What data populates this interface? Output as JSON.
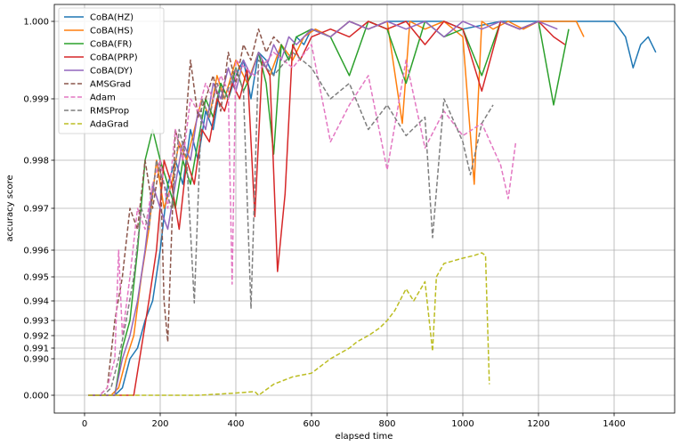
{
  "chart_data": {
    "type": "line",
    "title": "",
    "xlabel": "elapsed time",
    "ylabel": "accuracy score",
    "xlim": [
      -80,
      1560
    ],
    "x_ticks": [
      0,
      200,
      400,
      600,
      800,
      1000,
      1200,
      1400
    ],
    "y_ticks": [
      "0.000",
      "0.990",
      "0.991",
      "0.992",
      "0.993",
      "0.994",
      "0.995",
      "0.996",
      "0.997",
      "0.998",
      "0.999",
      "1.000"
    ],
    "y_scale": "nonlinear (warped toward 1.000)",
    "grid": true,
    "legend_position": "upper-left",
    "series": [
      {
        "name": "CoBA(HZ)",
        "color": "#1f77b4",
        "dash": "solid",
        "x": [
          10,
          60,
          80,
          100,
          120,
          140,
          160,
          180,
          200,
          220,
          240,
          260,
          280,
          300,
          320,
          340,
          360,
          380,
          400,
          420,
          440,
          460,
          480,
          500,
          520,
          540,
          560,
          580,
          600,
          650,
          700,
          750,
          800,
          850,
          900,
          950,
          1000,
          1100,
          1200,
          1300,
          1350,
          1400,
          1430,
          1450,
          1470,
          1490,
          1510
        ],
        "y": [
          0.0,
          0.0,
          0.0,
          0.2,
          0.99,
          0.991,
          0.993,
          0.994,
          0.996,
          0.9975,
          0.998,
          0.9975,
          0.9985,
          0.998,
          0.9988,
          0.9985,
          0.9992,
          0.999,
          0.9993,
          0.9995,
          0.999,
          0.9996,
          0.9995,
          0.9993,
          0.9997,
          0.9995,
          0.9998,
          0.9997,
          0.9999,
          0.9998,
          1.0,
          0.9999,
          1.0,
          1.0,
          1.0,
          1.0,
          0.9999,
          1.0,
          1.0,
          1.0,
          1.0,
          1.0,
          0.9998,
          0.9994,
          0.9997,
          0.9998,
          0.9996
        ]
      },
      {
        "name": "CoBA(HS)",
        "color": "#ff7f0e",
        "dash": "solid",
        "x": [
          10,
          50,
          70,
          90,
          110,
          130,
          150,
          170,
          190,
          210,
          230,
          250,
          270,
          290,
          310,
          330,
          350,
          370,
          400,
          430,
          460,
          490,
          520,
          550,
          580,
          610,
          650,
          700,
          750,
          800,
          840,
          860,
          900,
          950,
          1000,
          1030,
          1050,
          1080,
          1120,
          1160,
          1200,
          1250,
          1300,
          1320
        ],
        "y": [
          0.0,
          0.0,
          0.0,
          0.2,
          0.99,
          0.992,
          0.995,
          0.9965,
          0.998,
          0.997,
          0.9975,
          0.9983,
          0.998,
          0.9985,
          0.999,
          0.9987,
          0.9993,
          0.999,
          0.9995,
          0.9992,
          0.9996,
          0.9993,
          0.9997,
          0.9995,
          0.9998,
          0.9999,
          0.9998,
          1.0,
          0.9999,
          1.0,
          0.9986,
          1.0,
          0.9999,
          1.0,
          0.9998,
          0.9975,
          1.0,
          0.9999,
          1.0,
          0.9999,
          1.0,
          1.0,
          1.0,
          0.9998
        ]
      },
      {
        "name": "CoBA(FR)",
        "color": "#2ca02c",
        "dash": "solid",
        "x": [
          10,
          60,
          80,
          100,
          120,
          140,
          160,
          180,
          200,
          220,
          240,
          260,
          280,
          300,
          320,
          340,
          360,
          380,
          400,
          420,
          440,
          460,
          480,
          500,
          520,
          540,
          560,
          600,
          650,
          700,
          750,
          800,
          850,
          900,
          950,
          1000,
          1050,
          1100,
          1150,
          1200,
          1240,
          1280
        ],
        "y": [
          0.0,
          0.0,
          0.0,
          0.991,
          0.993,
          0.996,
          0.998,
          0.9985,
          0.998,
          0.9975,
          0.997,
          0.998,
          0.9975,
          0.9983,
          0.999,
          0.9987,
          0.9992,
          0.999,
          0.9994,
          0.9991,
          0.9993,
          0.9996,
          0.9992,
          0.9981,
          0.9997,
          0.9995,
          0.9998,
          0.9999,
          0.9998,
          0.9993,
          1.0,
          0.9999,
          0.9992,
          1.0,
          0.9998,
          0.9999,
          0.9993,
          1.0,
          0.9999,
          1.0,
          0.9989,
          0.9999
        ]
      },
      {
        "name": "CoBA(PRP)",
        "color": "#d62728",
        "dash": "solid",
        "x": [
          10,
          70,
          90,
          110,
          130,
          150,
          170,
          190,
          210,
          230,
          250,
          270,
          290,
          310,
          330,
          350,
          370,
          390,
          410,
          430,
          450,
          470,
          490,
          510,
          530,
          550,
          570,
          600,
          650,
          700,
          750,
          800,
          850,
          900,
          950,
          1000,
          1050,
          1100,
          1150,
          1200,
          1240,
          1270
        ],
        "y": [
          0.0,
          0.0,
          0.0,
          0.0,
          0.0,
          0.991,
          0.994,
          0.996,
          0.998,
          0.9975,
          0.9965,
          0.998,
          0.9975,
          0.9985,
          0.9983,
          0.999,
          0.9988,
          0.9992,
          0.999,
          0.9994,
          0.9968,
          0.9995,
          0.9993,
          0.9952,
          0.9973,
          0.9997,
          0.9995,
          0.9998,
          0.9999,
          0.9998,
          1.0,
          0.9999,
          1.0,
          0.9997,
          1.0,
          0.9999,
          0.9991,
          1.0,
          0.9999,
          1.0,
          0.9998,
          0.9997
        ]
      },
      {
        "name": "CoBA(DY)",
        "color": "#9467bd",
        "dash": "solid",
        "x": [
          10,
          60,
          80,
          100,
          120,
          140,
          160,
          180,
          200,
          220,
          240,
          260,
          280,
          300,
          320,
          340,
          360,
          380,
          400,
          420,
          440,
          460,
          480,
          500,
          520,
          540,
          560,
          600,
          650,
          700,
          750,
          800,
          850,
          900,
          950,
          1000,
          1050,
          1100,
          1150,
          1200,
          1250
        ],
        "y": [
          0.0,
          0.0,
          0.0,
          0.99,
          0.992,
          0.994,
          0.996,
          0.9975,
          0.997,
          0.9965,
          0.9975,
          0.9983,
          0.998,
          0.9988,
          0.9985,
          0.9992,
          0.999,
          0.9994,
          0.9991,
          0.9995,
          0.9993,
          0.9996,
          0.9994,
          0.9997,
          0.9995,
          0.9998,
          0.9997,
          0.9999,
          0.9998,
          1.0,
          0.9999,
          1.0,
          0.9999,
          1.0,
          0.9998,
          1.0,
          0.9999,
          1.0,
          0.9999,
          1.0,
          0.9999
        ]
      },
      {
        "name": "AMSGrad",
        "color": "#8c564b",
        "dash": "dashed",
        "x": [
          10,
          40,
          60,
          80,
          100,
          120,
          140,
          160,
          180,
          200,
          210,
          220,
          240,
          260,
          280,
          300,
          320,
          340,
          360,
          380,
          400,
          420,
          440,
          460,
          480,
          500,
          520
        ],
        "y": [
          0.0,
          0.0,
          0.2,
          0.993,
          0.995,
          0.997,
          0.9965,
          0.998,
          0.997,
          0.998,
          0.994,
          0.9915,
          0.9985,
          0.998,
          0.9995,
          0.9987,
          0.999,
          0.9993,
          0.9988,
          0.9996,
          0.9992,
          0.9997,
          0.9995,
          0.9999,
          0.9996,
          0.9998,
          0.9997
        ]
      },
      {
        "name": "Adam",
        "color": "#e377c2",
        "dash": "dashed",
        "x": [
          10,
          40,
          60,
          80,
          90,
          100,
          120,
          140,
          160,
          180,
          200,
          220,
          240,
          260,
          280,
          300,
          320,
          340,
          360,
          380,
          390,
          400,
          450,
          500,
          550,
          600,
          650,
          700,
          750,
          800,
          850,
          900,
          950,
          1000,
          1050,
          1100,
          1120,
          1140
        ],
        "y": [
          0.0,
          0.0,
          0.2,
          0.99,
          0.996,
          0.992,
          0.995,
          0.997,
          0.9965,
          0.9975,
          0.998,
          0.997,
          0.9985,
          0.998,
          0.999,
          0.9988,
          0.9992,
          0.999,
          0.9993,
          0.9991,
          0.9947,
          0.9995,
          0.9993,
          0.9996,
          0.9994,
          0.9997,
          0.9983,
          0.9989,
          0.9993,
          0.9978,
          0.9995,
          0.9982,
          0.9988,
          0.9984,
          0.9986,
          0.9979,
          0.9972,
          0.9983
        ]
      },
      {
        "name": "RMSProp",
        "color": "#7f7f7f",
        "dash": "dashed",
        "x": [
          10,
          50,
          70,
          90,
          110,
          130,
          150,
          170,
          190,
          210,
          230,
          250,
          270,
          290,
          310,
          330,
          350,
          370,
          400,
          420,
          440,
          460,
          500,
          550,
          600,
          650,
          700,
          750,
          800,
          850,
          900,
          920,
          950,
          1000,
          1020,
          1050,
          1080
        ],
        "y": [
          0.0,
          0.0,
          0.2,
          0.99,
          0.993,
          0.995,
          0.997,
          0.9965,
          0.998,
          0.9975,
          0.997,
          0.9985,
          0.998,
          0.9939,
          0.999,
          0.9987,
          0.9992,
          0.999,
          0.9994,
          0.9991,
          0.9936,
          0.9995,
          0.9993,
          0.9996,
          0.9994,
          0.999,
          0.9992,
          0.9985,
          0.9989,
          0.9984,
          0.9987,
          0.9963,
          0.999,
          0.9983,
          0.9977,
          0.9986,
          0.9989
        ]
      },
      {
        "name": "AdaGrad",
        "color": "#bcbd22",
        "dash": "dashed",
        "x": [
          10,
          100,
          200,
          300,
          350,
          400,
          450,
          460,
          500,
          550,
          600,
          650,
          700,
          720,
          750,
          780,
          800,
          820,
          850,
          870,
          900,
          920,
          930,
          950,
          1000,
          1030,
          1050,
          1060,
          1070
        ],
        "y": [
          0.0,
          0.0,
          0.0,
          0.0,
          0.03,
          0.06,
          0.1,
          0.0,
          0.3,
          0.5,
          0.6,
          0.99,
          0.991,
          0.9915,
          0.992,
          0.9925,
          0.993,
          0.9935,
          0.9945,
          0.994,
          0.9948,
          0.9907,
          0.995,
          0.9955,
          0.9957,
          0.9958,
          0.9959,
          0.9958,
          0.3
        ]
      }
    ]
  }
}
